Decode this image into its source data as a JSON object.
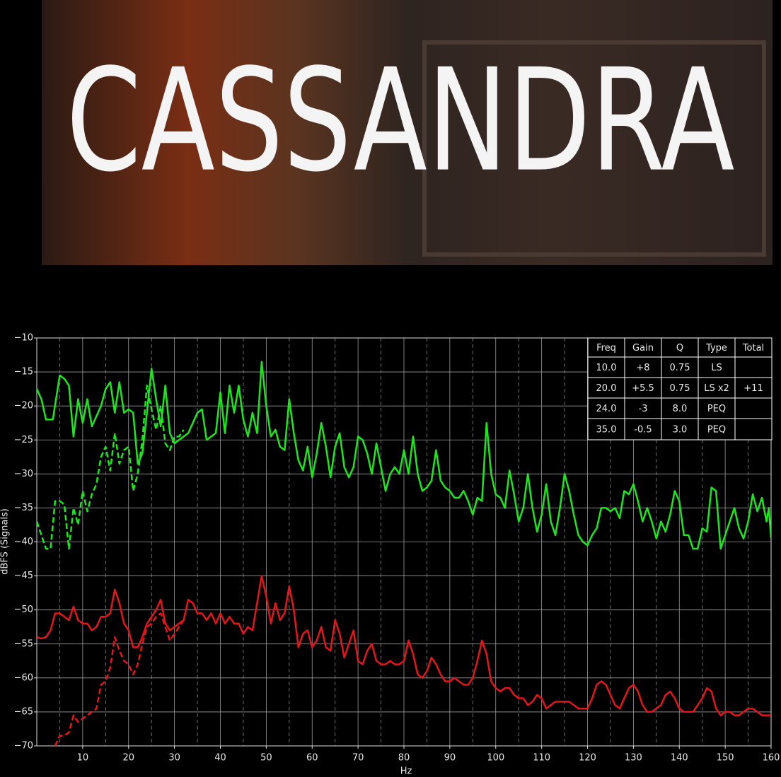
{
  "poster": {
    "title": "CASSANDRA"
  },
  "chart_data": {
    "type": "line",
    "xlabel": "Hz",
    "ylabel": "dBFS (Signals)",
    "xlim": [
      0,
      160
    ],
    "ylim": [
      -70,
      -10
    ],
    "xticks": [
      10,
      20,
      30,
      40,
      50,
      60,
      70,
      80,
      90,
      100,
      110,
      120,
      130,
      140,
      150,
      160
    ],
    "xminorticks": [
      5,
      15,
      25,
      35,
      45,
      55,
      65,
      75,
      85,
      95,
      105,
      115,
      125,
      135,
      145,
      155
    ],
    "yticks": [
      {
        "value": -10,
        "label": "−10"
      },
      {
        "value": -15,
        "label": "−15"
      },
      {
        "value": -20,
        "label": "−20"
      },
      {
        "value": -25,
        "label": "−25"
      },
      {
        "value": -30,
        "label": "−30"
      },
      {
        "value": -35,
        "label": "−35"
      },
      {
        "value": -40,
        "label": "−40"
      },
      {
        "value": -45,
        "label": "−45"
      },
      {
        "value": -50,
        "label": "−50"
      },
      {
        "value": -55,
        "label": "−55"
      },
      {
        "value": -60,
        "label": "−60"
      },
      {
        "value": -65,
        "label": "−65"
      },
      {
        "value": -70,
        "label": "−70"
      }
    ],
    "grid": true,
    "series": [
      {
        "color": "#1ee61e",
        "dashed": false,
        "x": [
          0,
          1,
          2,
          3.5,
          5,
          6,
          7,
          8,
          9,
          10,
          11,
          12,
          13,
          14,
          15,
          16,
          17,
          18,
          19,
          20,
          21,
          22,
          23,
          24,
          25,
          26,
          27,
          28,
          29,
          30,
          31,
          33,
          35,
          36,
          37,
          39,
          40,
          41,
          42,
          43,
          44,
          45,
          46,
          47,
          48,
          49,
          50,
          51,
          52,
          53,
          54,
          55,
          56,
          57,
          58,
          59,
          60,
          61,
          62,
          63,
          64,
          65,
          66,
          67,
          68,
          69,
          70,
          71,
          72,
          73,
          74,
          75,
          76,
          77,
          78,
          79,
          80,
          81,
          82,
          83,
          84,
          85,
          86,
          87,
          88,
          89,
          90,
          91,
          92,
          93,
          94,
          95,
          96,
          97,
          98,
          99,
          100,
          101,
          102,
          103,
          104,
          105,
          106,
          107,
          108,
          109,
          110,
          111,
          112,
          113,
          114,
          115,
          116,
          117,
          118,
          119,
          120,
          121,
          122,
          123,
          124,
          125,
          126,
          127,
          128,
          129,
          130,
          131,
          132,
          133,
          134,
          135,
          136,
          137,
          138,
          139,
          140,
          141,
          142,
          143,
          144,
          145,
          146,
          147,
          148,
          149,
          150,
          151,
          152,
          153,
          154,
          155,
          156,
          157,
          158,
          159,
          159.5,
          160
        ],
        "values": [
          -17.5,
          -19,
          -22,
          -22,
          -15.5,
          -16,
          -17,
          -24.5,
          -19,
          -22.5,
          -19,
          -23,
          -21.5,
          -20,
          -17.5,
          -16.5,
          -21,
          -16.5,
          -21,
          -20.5,
          -21,
          -28.5,
          -27,
          -21,
          -14.5,
          -19,
          -23,
          -17,
          -24,
          -25.5,
          -25,
          -24,
          -21,
          -20.5,
          -25,
          -24,
          -18,
          -24,
          -17,
          -21,
          -17,
          -22,
          -24.5,
          -21,
          -24,
          -13.5,
          -20,
          -24.5,
          -23.5,
          -26,
          -26.5,
          -19,
          -24,
          -28,
          -29.5,
          -26,
          -30.5,
          -27,
          -22.5,
          -26,
          -30.5,
          -26,
          -24,
          -29,
          -30.5,
          -29,
          -24.5,
          -25,
          -27,
          -30,
          -25.5,
          -29,
          -32.5,
          -30,
          -29,
          -30,
          -26.5,
          -30,
          -24.5,
          -30,
          -32.5,
          -32,
          -31,
          -26.5,
          -31,
          -32,
          -32.5,
          -33.5,
          -33.5,
          -32.5,
          -34,
          -36,
          -33.5,
          -34,
          -22.5,
          -30,
          -33,
          -33.5,
          -35,
          -29.5,
          -33,
          -37,
          -35,
          -30,
          -35,
          -38.5,
          -36,
          -31.5,
          -37,
          -39,
          -35,
          -30,
          -32.5,
          -36,
          -39,
          -40,
          -40.5,
          -39,
          -38,
          -35,
          -35,
          -35.5,
          -35,
          -36.5,
          -32.5,
          -33,
          -31.5,
          -34,
          -37,
          -35,
          -37,
          -39.5,
          -37,
          -38.5,
          -36,
          -32.5,
          -34,
          -39,
          -39,
          -41,
          -41,
          -38,
          -38.5,
          -32,
          -32.5,
          -41,
          -39,
          -37,
          -35,
          -38,
          -39.5,
          -37,
          -33,
          -35.5,
          -33.5,
          -37,
          -35,
          -39.5
        ]
      },
      {
        "color": "#1ee61e",
        "dashed": true,
        "x": [
          0,
          1,
          2,
          3,
          4,
          5,
          6,
          7,
          8,
          9,
          10,
          11,
          12,
          13,
          14,
          15,
          16,
          17,
          18,
          19,
          20,
          21,
          22,
          23,
          24,
          25,
          26,
          27,
          28,
          29,
          30,
          31,
          32
        ],
        "values": [
          -37,
          -39,
          -41,
          -41,
          -34,
          -34,
          -34.5,
          -41,
          -35,
          -37.5,
          -32.5,
          -35.5,
          -33,
          -31.5,
          -27.5,
          -26,
          -29.5,
          -24,
          -28.5,
          -26.5,
          -26,
          -32.5,
          -30,
          -25,
          -17,
          -20.5,
          -23.5,
          -20,
          -25.5,
          -26.5,
          -24.5,
          -24.5,
          -23.5
        ]
      },
      {
        "color": "#e3161b",
        "dashed": false,
        "x": [
          0,
          1,
          2,
          3,
          4,
          5,
          6,
          7,
          8,
          9,
          10,
          11,
          12,
          13,
          14,
          15,
          16,
          17,
          18,
          19,
          20,
          21,
          22,
          23,
          24,
          25,
          26,
          27,
          28,
          29,
          30,
          31,
          32,
          33,
          34,
          35,
          36,
          37,
          38,
          39,
          40,
          41,
          42,
          43,
          44,
          45,
          46,
          47,
          48,
          49,
          50,
          51,
          52,
          53,
          54,
          55,
          56,
          57,
          58,
          59,
          60,
          61,
          62,
          63,
          64,
          65,
          66,
          67,
          68,
          69,
          70,
          71,
          72,
          73,
          74,
          75,
          76,
          77,
          78,
          79,
          80,
          81,
          82,
          83,
          84,
          85,
          86,
          87,
          88,
          89,
          90,
          91,
          92,
          93,
          94,
          95,
          96,
          97,
          98,
          99,
          100,
          101,
          102,
          103,
          104,
          105,
          106,
          107,
          108,
          109,
          110,
          111,
          112,
          113,
          114,
          115,
          116,
          117,
          118,
          119,
          120,
          121,
          122,
          123,
          124,
          125,
          126,
          127,
          128,
          129,
          130,
          131,
          132,
          133,
          134,
          135,
          136,
          137,
          138,
          139,
          140,
          141,
          142,
          143,
          144,
          145,
          146,
          147,
          148,
          149,
          150,
          151,
          152,
          153,
          154,
          155,
          156,
          157,
          158,
          159,
          160
        ],
        "values": [
          -54,
          -54.2,
          -54,
          -53,
          -50.5,
          -50.5,
          -51,
          -51.5,
          -49.5,
          -51.5,
          -52,
          -52,
          -53,
          -52.5,
          -51,
          -51,
          -50.5,
          -47,
          -49,
          -52,
          -53,
          -55.5,
          -55.5,
          -54,
          -52,
          -51,
          -50,
          -48.5,
          -52,
          -53,
          -52.5,
          -52,
          -51.5,
          -48.5,
          -49,
          -50.5,
          -50.5,
          -51.5,
          -50.5,
          -52,
          -50.5,
          -52,
          -51,
          -52,
          -52,
          -53.5,
          -52.5,
          -53,
          -49,
          -45,
          -48,
          -52,
          -49,
          -51.5,
          -50.5,
          -46.5,
          -50,
          -55.5,
          -53.5,
          -53,
          -55.5,
          -54.5,
          -52.5,
          -55.5,
          -56,
          -51.5,
          -53.5,
          -57,
          -55,
          -53,
          -57.5,
          -58,
          -56,
          -55,
          -57.5,
          -58,
          -58,
          -57.5,
          -58,
          -58,
          -57.5,
          -54.5,
          -56.5,
          -59.5,
          -60,
          -59,
          -57,
          -58,
          -59.5,
          -60.5,
          -60.5,
          -60,
          -60.5,
          -61,
          -61,
          -60,
          -57.5,
          -54.5,
          -56.5,
          -60.5,
          -61.5,
          -62,
          -61.5,
          -61.5,
          -62.5,
          -63,
          -63,
          -64,
          -63.5,
          -62.5,
          -63,
          -64.5,
          -64,
          -63.5,
          -63.5,
          -63.5,
          -63.5,
          -64,
          -64.5,
          -64.5,
          -64.5,
          -63,
          -61,
          -60.5,
          -61,
          -62.5,
          -64,
          -64.5,
          -63,
          -61.5,
          -61,
          -62,
          -64,
          -65,
          -65,
          -64.5,
          -64,
          -62.5,
          -62,
          -63,
          -64.5,
          -65,
          -65,
          -65,
          -64,
          -63,
          -61.5,
          -62,
          -64.5,
          -65.5,
          -65,
          -65,
          -65.5,
          -65.5,
          -65,
          -64.5,
          -64.5,
          -65,
          -65.5,
          -65.5,
          -65.5
        ]
      },
      {
        "color": "#e3161b",
        "dashed": true,
        "x": [
          4,
          5,
          6,
          7,
          8,
          9,
          10,
          11,
          12,
          13,
          14,
          15,
          16,
          17,
          18,
          19,
          20,
          21,
          22,
          23,
          24,
          25,
          26,
          27,
          28,
          29,
          30,
          31,
          32
        ],
        "values": [
          -70,
          -68.5,
          -68.5,
          -68,
          -65.5,
          -66.5,
          -66,
          -65.5,
          -65,
          -64.5,
          -61,
          -60.5,
          -58.5,
          -54,
          -56,
          -57.5,
          -58,
          -59.5,
          -58,
          -55,
          -52.5,
          -52,
          -51,
          -50.5,
          -52.5,
          -54.5,
          -53.5,
          -52.5,
          -51.5
        ]
      }
    ],
    "table": {
      "header": [
        "Freq",
        "Gain",
        "Q",
        "Type",
        "Total"
      ],
      "rows": [
        [
          "10.0",
          "+8",
          "0.75",
          "LS"
        ],
        [
          "20.0",
          "+5.5",
          "0.75",
          "LS x2",
          "+11"
        ],
        [
          "24.0",
          "-3",
          "8.0",
          "PEQ"
        ],
        [
          "35.0",
          "-0.5",
          "3.0",
          "PEQ"
        ]
      ]
    }
  }
}
